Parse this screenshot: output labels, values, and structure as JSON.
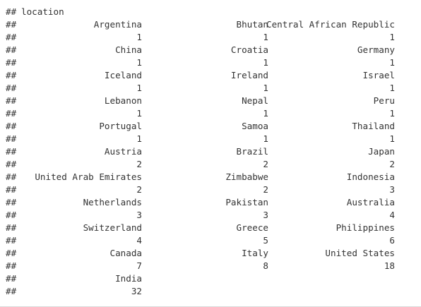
{
  "console": {
    "prompt": "##",
    "header": "location",
    "rows": [
      {
        "c1": "Argentina",
        "c2": "Bhutan",
        "c3": "Central African Republic"
      },
      {
        "c1": "1",
        "c2": "1",
        "c3": "1"
      },
      {
        "c1": "China",
        "c2": "Croatia",
        "c3": "Germany"
      },
      {
        "c1": "1",
        "c2": "1",
        "c3": "1"
      },
      {
        "c1": "Iceland",
        "c2": "Ireland",
        "c3": "Israel"
      },
      {
        "c1": "1",
        "c2": "1",
        "c3": "1"
      },
      {
        "c1": "Lebanon",
        "c2": "Nepal",
        "c3": "Peru"
      },
      {
        "c1": "1",
        "c2": "1",
        "c3": "1"
      },
      {
        "c1": "Portugal",
        "c2": "Samoa",
        "c3": "Thailand"
      },
      {
        "c1": "1",
        "c2": "1",
        "c3": "1"
      },
      {
        "c1": "Austria",
        "c2": "Brazil",
        "c3": "Japan"
      },
      {
        "c1": "2",
        "c2": "2",
        "c3": "2"
      },
      {
        "c1": "United Arab Emirates",
        "c2": "Zimbabwe",
        "c3": "Indonesia"
      },
      {
        "c1": "2",
        "c2": "2",
        "c3": "3"
      },
      {
        "c1": "Netherlands",
        "c2": "Pakistan",
        "c3": "Australia"
      },
      {
        "c1": "3",
        "c2": "3",
        "c3": "4"
      },
      {
        "c1": "Switzerland",
        "c2": "Greece",
        "c3": "Philippines"
      },
      {
        "c1": "4",
        "c2": "5",
        "c3": "6"
      },
      {
        "c1": "Canada",
        "c2": "Italy",
        "c3": "United States"
      },
      {
        "c1": "7",
        "c2": "8",
        "c3": "18"
      },
      {
        "c1": "India",
        "c2": "",
        "c3": ""
      },
      {
        "c1": "32",
        "c2": "",
        "c3": ""
      }
    ]
  }
}
